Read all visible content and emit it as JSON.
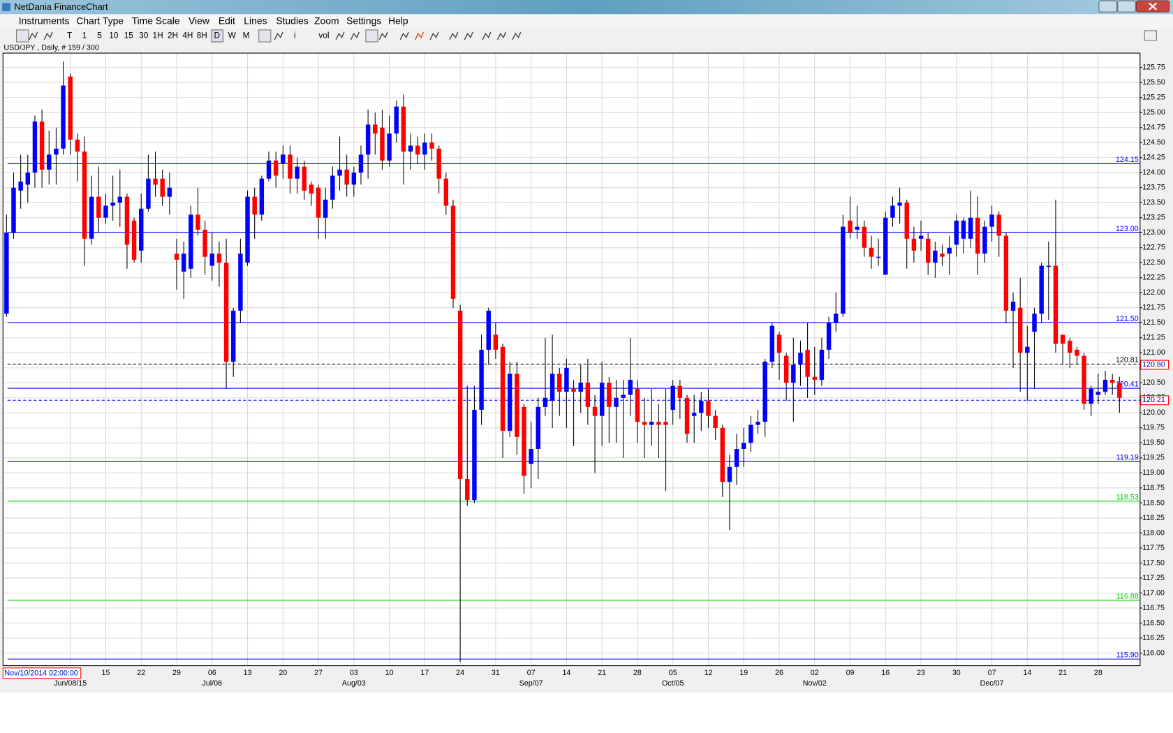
{
  "window": {
    "title": "NetDania FinanceChart",
    "menu": [
      "Instruments",
      "Chart Type",
      "Time Scale",
      "View",
      "Edit",
      "Lines",
      "Studies",
      "Zoom",
      "Settings",
      "Help"
    ],
    "toolbar": [
      "T",
      "1",
      "5",
      "10",
      "15",
      "30",
      "1H",
      "2H",
      "4H",
      "8H",
      "D",
      "W",
      "M",
      "i",
      "vol"
    ]
  },
  "chart_data": {
    "type": "candlestick",
    "subtitle": "USD/JPY , Daily, # 159 / 300",
    "cursor_date": "Nov/10/2014 02:00:00",
    "up_color": "#0000ff",
    "down_color": "#ff0000",
    "categories": [
      null,
      null,
      null,
      null,
      null,
      null,
      null,
      null,
      null,
      null,
      null,
      null,
      null,
      null,
      "15",
      null,
      null,
      null,
      null,
      "22",
      null,
      null,
      null,
      null,
      "29",
      null,
      null,
      null,
      null,
      "06",
      null,
      null,
      null,
      null,
      "13",
      null,
      null,
      null,
      null,
      "20",
      null,
      null,
      null,
      null,
      "27",
      null,
      null,
      null,
      null,
      "03",
      null,
      null,
      null,
      null,
      "10",
      null,
      null,
      null,
      null,
      "17",
      null,
      null,
      null,
      null,
      "24",
      null,
      null,
      null,
      null,
      "31",
      null,
      null,
      null,
      null,
      "07",
      null,
      null,
      null,
      null,
      "14",
      null,
      null,
      null,
      null,
      "21",
      null,
      null,
      null,
      null,
      "28",
      null,
      null,
      null,
      null,
      "05",
      null,
      null,
      null,
      null,
      "12",
      null,
      null,
      null,
      null,
      "19",
      null,
      null,
      null,
      null,
      "26",
      null,
      null,
      null,
      null,
      "02",
      null,
      null,
      null,
      null,
      "09",
      null,
      null,
      null,
      null,
      "16",
      null,
      null,
      null,
      null,
      "23",
      null,
      null,
      null,
      null,
      "30",
      null,
      null,
      null,
      null,
      "07",
      null,
      null,
      null,
      null,
      "14",
      null,
      null,
      null,
      null,
      "21",
      null,
      null,
      null,
      null,
      "28",
      null,
      null,
      null
    ],
    "month_labels": [
      null,
      null,
      null,
      null,
      null,
      null,
      null,
      null,
      null,
      "Jun/08/15",
      null,
      null,
      null,
      null,
      null,
      null,
      null,
      null,
      null,
      null,
      null,
      null,
      null,
      null,
      null,
      null,
      null,
      null,
      null,
      "Jul/06",
      null,
      null,
      null,
      null,
      null,
      null,
      null,
      null,
      null,
      null,
      null,
      null,
      null,
      null,
      null,
      null,
      null,
      null,
      null,
      "Aug/03",
      null,
      null,
      null,
      null,
      null,
      null,
      null,
      null,
      null,
      null,
      null,
      null,
      null,
      null,
      null,
      null,
      null,
      null,
      null,
      null,
      null,
      null,
      null,
      null,
      "Sep/07",
      null,
      null,
      null,
      null,
      null,
      null,
      null,
      null,
      null,
      null,
      null,
      null,
      null,
      null,
      null,
      null,
      null,
      null,
      null,
      "Oct/05",
      null,
      null,
      null,
      null,
      null,
      null,
      null,
      null,
      null,
      null,
      null,
      null,
      null,
      null,
      null,
      null,
      null,
      null,
      null,
      "Nov/02",
      null,
      null,
      null,
      null,
      null,
      null,
      null,
      null,
      null,
      null,
      null,
      null,
      null,
      null,
      null,
      null,
      null,
      null,
      null,
      null,
      null,
      null,
      null,
      null,
      "Dec/07",
      null,
      null,
      null,
      null,
      null,
      null,
      null,
      null,
      null,
      null,
      null,
      null,
      null,
      null,
      null,
      null,
      null,
      null
    ],
    "open": [
      121.65,
      123.0,
      123.7,
      123.8,
      124.0,
      124.85,
      124.05,
      124.3,
      124.4,
      125.6,
      124.55,
      124.35,
      122.9,
      123.6,
      123.25,
      123.45,
      123.5,
      123.6,
      123.2,
      122.7,
      123.4,
      123.9,
      123.9,
      123.6,
      122.65,
      122.35,
      122.4,
      123.3,
      123.05,
      122.45,
      122.65,
      122.5,
      120.85,
      121.7,
      122.5,
      123.6,
      123.3,
      123.9,
      124.2,
      124.15,
      124.3,
      123.9,
      124.1,
      123.8,
      123.75,
      123.25,
      123.55,
      123.95,
      124.05,
      123.8,
      124.0,
      124.3,
      124.8,
      124.75,
      124.2,
      124.65,
      125.1,
      124.35,
      124.45,
      124.3,
      124.5,
      124.4,
      123.9,
      123.45,
      121.7,
      118.9,
      118.55,
      120.05,
      121.05,
      121.3,
      121.1,
      119.7,
      120.65,
      120.1,
      119.15,
      119.4,
      120.1,
      120.2,
      120.65,
      120.35,
      120.4,
      120.35,
      120.5,
      120.1,
      119.95,
      120.5,
      120.1,
      120.25,
      120.3,
      120.4,
      119.85,
      119.8,
      119.85,
      119.85,
      120.05,
      120.45,
      120.25,
      119.95,
      120.0,
      120.2,
      119.95,
      119.75,
      118.85,
      119.1,
      119.4,
      119.5,
      119.8,
      119.85,
      120.85,
      121.3,
      120.95,
      120.5,
      120.8,
      121.05,
      120.6,
      120.55,
      121.05,
      121.5,
      121.65,
      123.2,
      123.05,
      123.1,
      122.75,
      122.6,
      122.3,
      123.25,
      123.45,
      123.5,
      122.9,
      122.9,
      122.9,
      122.5,
      122.65,
      122.65,
      122.8,
      122.9,
      122.9,
      123.25,
      122.65,
      123.1,
      123.3,
      122.95,
      121.7,
      121.75,
      121.0,
      121.35,
      121.65,
      122.45,
      122.45,
      121.3,
      121.2,
      121.05,
      120.95,
      120.15,
      120.3,
      120.35,
      120.55,
      120.5
    ],
    "high": [
      123.3,
      124.0,
      124.3,
      124.3,
      124.95,
      125.05,
      124.7,
      124.75,
      125.85,
      125.65,
      124.65,
      124.6,
      123.95,
      124.1,
      123.65,
      123.95,
      124.05,
      123.65,
      123.25,
      123.65,
      124.3,
      124.35,
      124.05,
      124.0,
      122.9,
      122.85,
      123.45,
      123.75,
      123.2,
      123.0,
      122.85,
      122.9,
      121.75,
      122.9,
      123.7,
      123.75,
      123.95,
      124.35,
      124.35,
      124.45,
      124.45,
      124.25,
      124.2,
      123.85,
      123.8,
      123.75,
      124.1,
      124.6,
      124.3,
      124.1,
      124.45,
      125.05,
      125.0,
      125.05,
      124.95,
      125.2,
      125.3,
      124.65,
      124.6,
      124.65,
      124.65,
      124.45,
      124.0,
      123.55,
      121.8,
      120.45,
      120.45,
      121.3,
      121.75,
      121.5,
      121.15,
      120.85,
      120.85,
      120.15,
      119.85,
      120.25,
      121.25,
      121.3,
      120.75,
      120.9,
      120.55,
      120.8,
      120.9,
      120.3,
      120.85,
      120.6,
      120.55,
      120.55,
      121.25,
      120.55,
      120.25,
      120.4,
      120.15,
      120.4,
      120.55,
      120.55,
      120.3,
      120.3,
      120.35,
      120.4,
      120.05,
      119.8,
      119.3,
      119.65,
      119.75,
      119.95,
      120.05,
      120.9,
      121.5,
      121.35,
      121.0,
      121.25,
      121.2,
      121.5,
      121.1,
      121.25,
      121.6,
      122.0,
      123.3,
      123.6,
      123.45,
      123.2,
      122.95,
      122.9,
      123.35,
      123.6,
      123.75,
      123.55,
      123.1,
      123.2,
      123.0,
      122.85,
      122.8,
      122.95,
      123.3,
      123.25,
      123.7,
      123.6,
      123.2,
      123.45,
      123.35,
      123.0,
      122.0,
      122.25,
      121.45,
      121.75,
      122.5,
      122.85,
      123.55,
      121.3,
      121.25,
      121.1,
      121.0,
      120.45,
      120.65,
      120.7,
      120.65,
      120.6
    ],
    "low": [
      121.6,
      122.9,
      123.4,
      123.5,
      123.75,
      123.75,
      123.8,
      123.8,
      124.3,
      124.3,
      123.85,
      122.45,
      122.8,
      123.0,
      123.15,
      123.2,
      123.1,
      122.4,
      122.5,
      122.5,
      123.35,
      123.6,
      123.45,
      123.3,
      122.05,
      121.9,
      122.25,
      122.95,
      122.3,
      122.2,
      122.1,
      120.4,
      120.6,
      121.5,
      122.45,
      122.9,
      123.2,
      123.85,
      123.75,
      123.9,
      123.65,
      123.65,
      123.55,
      123.45,
      122.9,
      122.9,
      123.4,
      123.7,
      123.6,
      123.6,
      123.8,
      123.9,
      124.3,
      124.05,
      124.1,
      124.5,
      123.8,
      124.05,
      124.15,
      124.05,
      124.2,
      123.65,
      123.3,
      121.75,
      115.85,
      118.45,
      118.5,
      119.8,
      120.8,
      120.9,
      119.25,
      119.6,
      119.3,
      118.65,
      118.75,
      118.9,
      119.95,
      119.75,
      119.95,
      119.75,
      119.45,
      120.0,
      119.8,
      119.0,
      119.45,
      119.5,
      119.5,
      119.25,
      119.95,
      119.5,
      119.25,
      119.45,
      119.25,
      118.7,
      119.8,
      119.9,
      119.5,
      119.5,
      119.7,
      119.75,
      119.55,
      118.6,
      118.05,
      118.8,
      119.1,
      119.35,
      119.65,
      119.6,
      120.75,
      120.55,
      120.2,
      119.85,
      120.45,
      120.25,
      120.3,
      120.45,
      120.9,
      121.35,
      121.6,
      122.9,
      122.9,
      122.6,
      122.4,
      122.45,
      122.3,
      123.1,
      123.15,
      122.4,
      122.5,
      122.7,
      122.3,
      122.25,
      122.45,
      122.3,
      122.6,
      122.65,
      122.75,
      122.3,
      122.5,
      122.85,
      122.6,
      121.5,
      120.75,
      120.35,
      120.2,
      120.4,
      121.5,
      121.55,
      121.0,
      120.8,
      120.75,
      120.8,
      120.05,
      119.95,
      120.15,
      120.3,
      120.3,
      120.0
    ],
    "close": [
      123.0,
      123.75,
      123.85,
      124.0,
      124.85,
      124.05,
      124.3,
      124.4,
      125.45,
      124.55,
      124.35,
      122.9,
      123.6,
      123.25,
      123.45,
      123.5,
      123.6,
      122.8,
      122.55,
      123.4,
      123.9,
      123.8,
      123.6,
      123.75,
      122.55,
      122.65,
      123.3,
      123.05,
      122.6,
      122.65,
      122.5,
      120.85,
      121.7,
      122.65,
      123.6,
      123.3,
      123.9,
      124.2,
      123.95,
      124.3,
      123.9,
      124.1,
      123.7,
      123.65,
      123.25,
      123.55,
      123.95,
      124.05,
      123.8,
      124.0,
      124.3,
      124.8,
      124.65,
      124.2,
      124.65,
      125.1,
      124.35,
      124.45,
      124.3,
      124.5,
      124.4,
      123.9,
      123.45,
      121.9,
      118.9,
      118.55,
      120.05,
      121.05,
      121.7,
      121.05,
      119.7,
      120.65,
      119.6,
      118.95,
      119.4,
      120.1,
      120.25,
      120.65,
      120.35,
      120.75,
      120.35,
      120.5,
      120.1,
      119.95,
      120.5,
      120.1,
      120.25,
      120.3,
      120.55,
      119.85,
      119.8,
      119.85,
      119.8,
      119.8,
      120.45,
      120.25,
      119.65,
      120.0,
      120.2,
      119.95,
      119.75,
      118.85,
      119.1,
      119.4,
      119.5,
      119.8,
      119.85,
      120.85,
      121.45,
      121.0,
      120.5,
      120.8,
      121.0,
      120.6,
      120.55,
      121.05,
      121.5,
      121.65,
      123.1,
      123.0,
      123.1,
      122.75,
      122.6,
      122.6,
      123.25,
      123.45,
      123.5,
      122.9,
      122.7,
      122.95,
      122.5,
      122.7,
      122.6,
      122.75,
      123.2,
      123.2,
      123.25,
      122.65,
      123.1,
      123.3,
      122.95,
      121.7,
      121.85,
      121.0,
      121.1,
      121.65,
      122.45,
      122.45,
      121.15,
      121.15,
      121.0,
      120.95,
      120.15,
      120.4,
      120.35,
      120.55,
      120.5,
      120.25
    ],
    "ylim": [
      115.79,
      125.99
    ],
    "yticks": [
      {
        "value": 116,
        "label": "116.00"
      },
      116.25,
      {
        "value": 116.5,
        "label": "116.50"
      },
      116.75,
      {
        "value": 117,
        "label": "117.00"
      },
      117.25,
      {
        "value": 117.5,
        "label": "117.50"
      },
      117.75,
      {
        "value": 118,
        "label": "118.00"
      },
      118.25,
      {
        "value": 118.5,
        "label": "118.50"
      },
      118.75,
      {
        "value": 119,
        "label": "119.00"
      },
      119.25,
      {
        "value": 119.5,
        "label": "119.50"
      },
      119.75,
      {
        "value": 120,
        "label": "120.00"
      },
      120.25,
      {
        "value": 120.5,
        "label": "120.50"
      },
      120.75,
      {
        "value": 121,
        "label": "121.00"
      },
      121.25,
      {
        "value": 121.5,
        "label": "121.50"
      },
      121.75,
      {
        "value": 122,
        "label": "122.00"
      },
      122.25,
      {
        "value": 122.5,
        "label": "122.50"
      },
      122.75,
      {
        "value": 123,
        "label": "123.00"
      },
      123.25,
      {
        "value": 123.5,
        "label": "123.50"
      },
      123.75,
      {
        "value": 124,
        "label": "124.00"
      },
      124.25,
      {
        "value": 124.5,
        "label": "124.50"
      },
      124.75,
      {
        "value": 125,
        "label": "125.00"
      },
      125.25,
      {
        "value": 125.5,
        "label": "125.50"
      },
      125.75
    ],
    "grid": true,
    "levels": [
      {
        "value": 124.15,
        "color": "#0000ff",
        "style": "solid"
      },
      {
        "value": 123,
        "label": "123.00",
        "color": "#0000ff",
        "style": "solid"
      },
      {
        "value": 121.5,
        "label": "121.50",
        "color": "#0000ff",
        "style": "solid"
      },
      {
        "value": 120.81,
        "color": "#000000",
        "style": "dashed"
      },
      {
        "value": 120.41,
        "color": "#0000ff",
        "style": "solid"
      },
      {
        "value": 120.21,
        "color": "#0000ff",
        "style": "dashed",
        "labeled": false
      },
      {
        "value": 119.19,
        "color": "#0000ff",
        "style": "solid"
      },
      {
        "value": 118.53,
        "color": "#00cc00",
        "style": "solid"
      },
      {
        "value": 116.88,
        "color": "#00cc00",
        "style": "solid"
      },
      {
        "value": 115.9,
        "label": "115.90",
        "color": "#0000ff",
        "style": "solid"
      }
    ],
    "price_boxes": [
      {
        "value": 120.8,
        "label": "120.80"
      },
      {
        "value": 120.21
      }
    ]
  }
}
